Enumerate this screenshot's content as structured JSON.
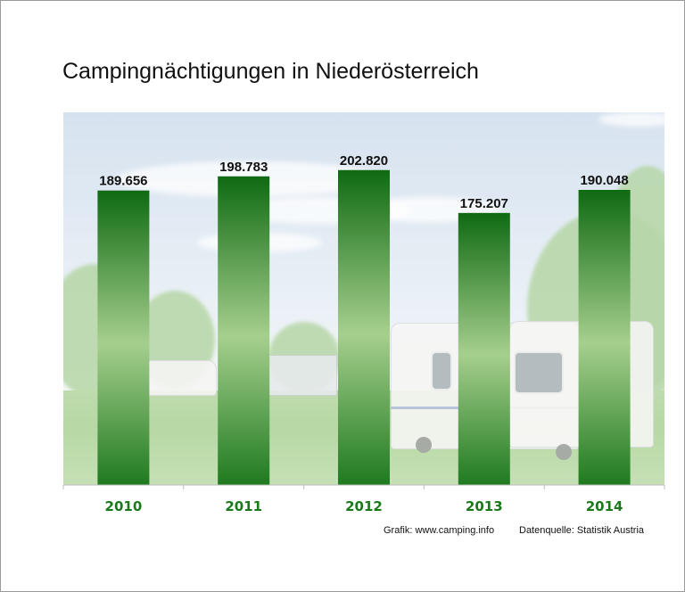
{
  "title": "Campingnächtigungen in Niederösterreich",
  "chart_data": {
    "type": "bar",
    "categories": [
      "2010",
      "2011",
      "2012",
      "2013",
      "2014"
    ],
    "values": [
      189656,
      198783,
      202820,
      175207,
      190048
    ],
    "value_labels": [
      "189.656",
      "198.783",
      "202.820",
      "175.207",
      "190.048"
    ],
    "title": "Campingnächtigungen in Niederösterreich",
    "xlabel": "",
    "ylabel": "",
    "ylim": [
      0,
      240000
    ],
    "grid": false,
    "legend": "none",
    "colors": {
      "bar_top": "#0f6a12",
      "bar_mid": "#a6cf8e",
      "bar_bottom": "#1f7a1f",
      "category_label": "#1a7a1a"
    }
  },
  "credits": {
    "grafik": "Grafik: www.camping.info",
    "quelle": "Datenquelle: Statistik Austria"
  }
}
